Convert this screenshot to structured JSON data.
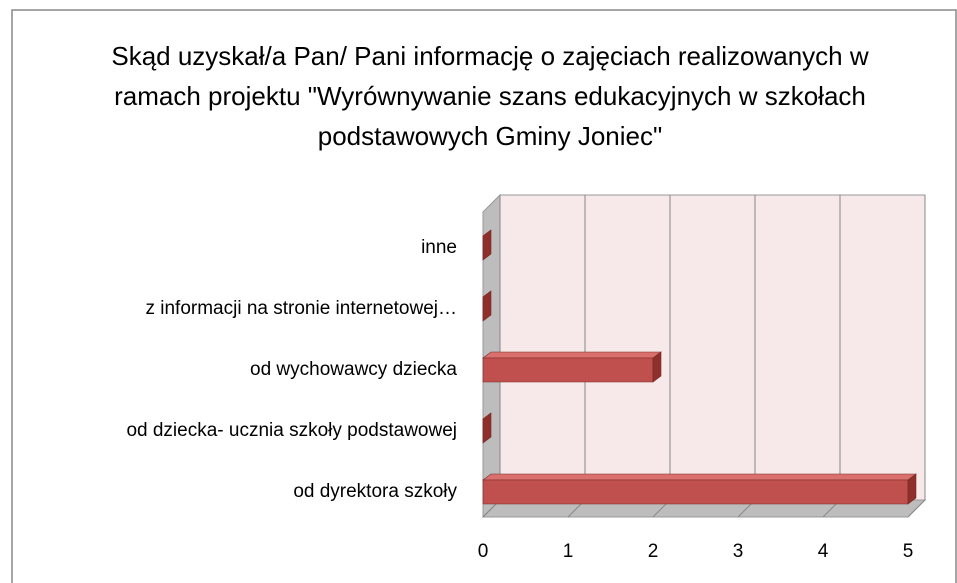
{
  "chart_data": {
    "type": "bar3d_horizontal",
    "title": "Skąd uzyskał/a Pan/ Pani informację o zajęciach realizowanych w ramach projektu \"Wyrównywanie szans edukacyjnych w szkołach podstawowych Gminy Joniec\"",
    "categories": [
      "od dyrektora szkoły",
      "od dziecka- ucznia szkoły podstawowej",
      "od wychowawcy dziecka",
      "z informacji na stronie internetowej…",
      "inne"
    ],
    "values": [
      5,
      0,
      2,
      0,
      0
    ],
    "color": "#c0504d",
    "xlim": [
      0,
      5
    ],
    "xticks": [
      0,
      1,
      2,
      3,
      4,
      5
    ],
    "grid": true
  }
}
